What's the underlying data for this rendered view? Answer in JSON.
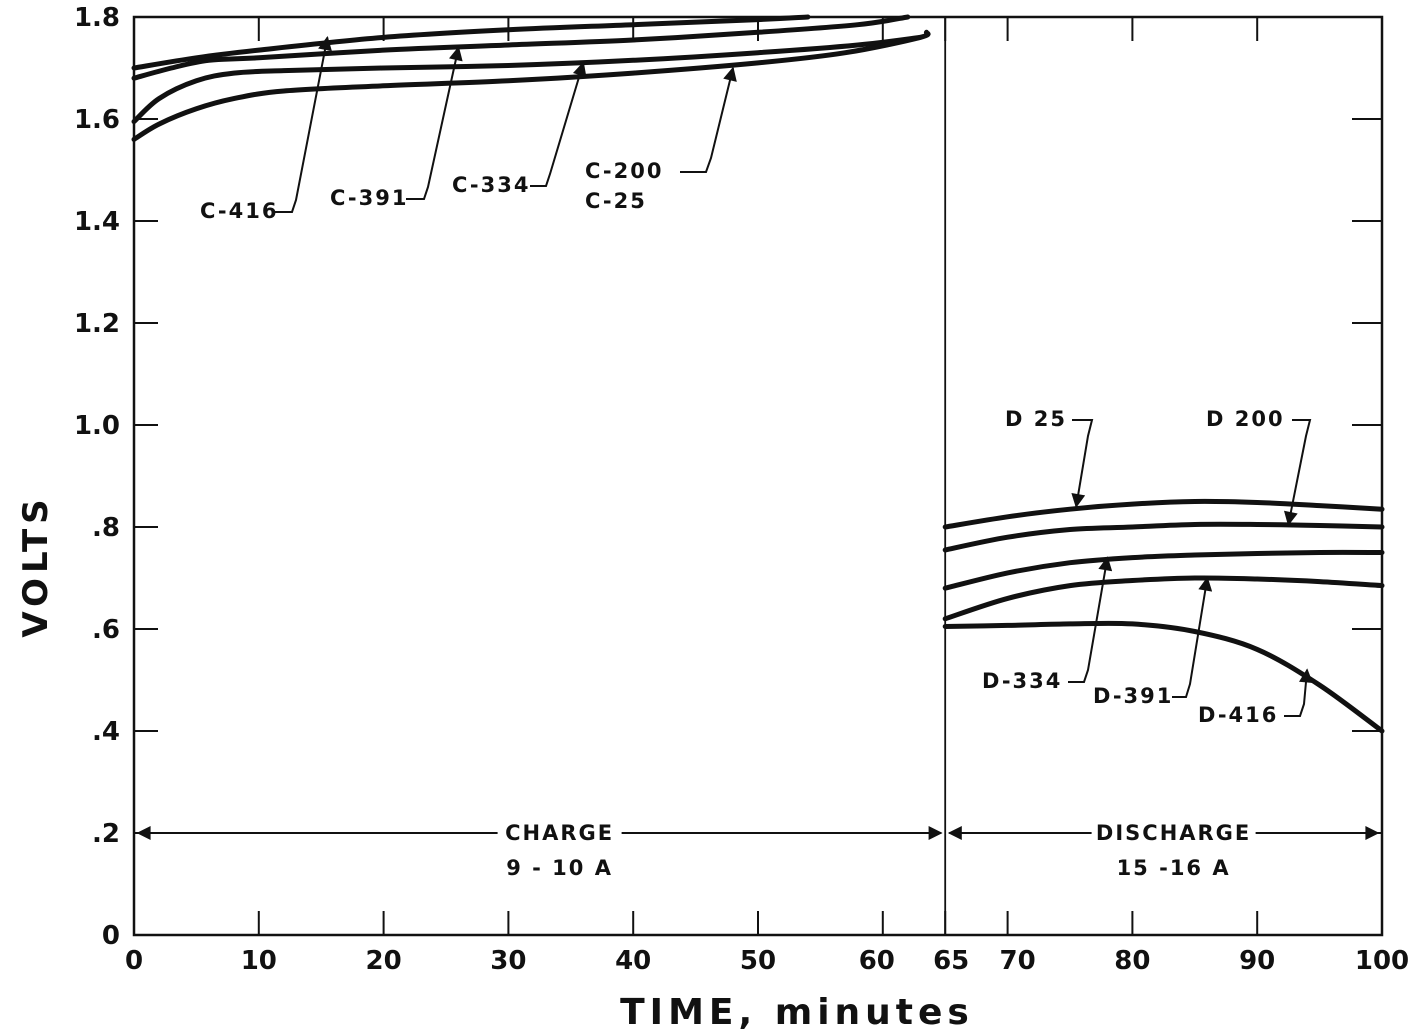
{
  "chart_data": {
    "type": "line",
    "title": "",
    "xlabel": "TIME, minutes",
    "ylabel": "VOLTS",
    "xlim": [
      0,
      100
    ],
    "ylim": [
      0,
      1.8
    ],
    "grid": false,
    "x_ticks": [
      {
        "value": 0,
        "label": "0"
      },
      {
        "value": 10,
        "label": "10"
      },
      {
        "value": 20,
        "label": "20"
      },
      {
        "value": 30,
        "label": "30"
      },
      {
        "value": 40,
        "label": "40"
      },
      {
        "value": 50,
        "label": "50"
      },
      {
        "value": 60,
        "label": "60"
      },
      {
        "value": 65,
        "label": "65"
      },
      {
        "value": 70,
        "label": "70"
      },
      {
        "value": 80,
        "label": "80"
      },
      {
        "value": 90,
        "label": "90"
      },
      {
        "value": 100,
        "label": "100"
      }
    ],
    "y_ticks": [
      {
        "value": 0,
        "label": "0"
      },
      {
        "value": 0.2,
        "label": ".2"
      },
      {
        "value": 0.4,
        "label": ".4"
      },
      {
        "value": 0.6,
        "label": ".6"
      },
      {
        "value": 0.8,
        "label": ".8"
      },
      {
        "value": 1.0,
        "label": "1.0"
      },
      {
        "value": 1.2,
        "label": "1.2"
      },
      {
        "value": 1.4,
        "label": "1.4"
      },
      {
        "value": 1.6,
        "label": "1.6"
      },
      {
        "value": 1.8,
        "label": "1.8"
      }
    ],
    "phase_divider_x": 65,
    "phases": [
      {
        "line1": "CHARGE",
        "line2": "9 - 10 A",
        "x_start": 0,
        "x_end": 65,
        "y": 0.2
      },
      {
        "line1": "DISCHARGE",
        "line2": "15 -16 A",
        "x_start": 65,
        "x_end": 100,
        "y": 0.2
      }
    ],
    "series": [
      {
        "id": "c416",
        "name": "C-416",
        "points": [
          [
            0,
            1.7
          ],
          [
            5,
            1.72
          ],
          [
            10,
            1.735
          ],
          [
            20,
            1.76
          ],
          [
            30,
            1.775
          ],
          [
            40,
            1.785
          ],
          [
            50,
            1.795
          ],
          [
            54,
            1.8
          ]
        ]
      },
      {
        "id": "c391",
        "name": "C-391",
        "points": [
          [
            0,
            1.68
          ],
          [
            3,
            1.7
          ],
          [
            6,
            1.715
          ],
          [
            10,
            1.72
          ],
          [
            20,
            1.735
          ],
          [
            30,
            1.745
          ],
          [
            40,
            1.755
          ],
          [
            50,
            1.77
          ],
          [
            58,
            1.785
          ],
          [
            62,
            1.8
          ]
        ]
      },
      {
        "id": "c334",
        "name": "C-334",
        "points": [
          [
            0,
            1.595
          ],
          [
            2,
            1.64
          ],
          [
            5,
            1.675
          ],
          [
            8,
            1.69
          ],
          [
            12,
            1.695
          ],
          [
            20,
            1.7
          ],
          [
            30,
            1.705
          ],
          [
            40,
            1.715
          ],
          [
            50,
            1.73
          ],
          [
            58,
            1.745
          ],
          [
            63,
            1.76
          ]
        ]
      },
      {
        "id": "c200",
        "name": "C-200 / C-25",
        "points": [
          [
            0,
            1.56
          ],
          [
            2,
            1.59
          ],
          [
            5,
            1.62
          ],
          [
            8,
            1.64
          ],
          [
            12,
            1.655
          ],
          [
            20,
            1.665
          ],
          [
            30,
            1.675
          ],
          [
            40,
            1.69
          ],
          [
            50,
            1.71
          ],
          [
            57,
            1.73
          ],
          [
            63,
            1.76
          ],
          [
            63.5,
            1.77
          ]
        ]
      },
      {
        "id": "d25",
        "name": "D 25",
        "points": [
          [
            65,
            0.8
          ],
          [
            70,
            0.82
          ],
          [
            75,
            0.835
          ],
          [
            80,
            0.845
          ],
          [
            85,
            0.85
          ],
          [
            90,
            0.848
          ],
          [
            95,
            0.842
          ],
          [
            100,
            0.835
          ]
        ]
      },
      {
        "id": "d200",
        "name": "D 200",
        "points": [
          [
            65,
            0.755
          ],
          [
            70,
            0.78
          ],
          [
            75,
            0.795
          ],
          [
            80,
            0.8
          ],
          [
            85,
            0.805
          ],
          [
            90,
            0.805
          ],
          [
            95,
            0.803
          ],
          [
            100,
            0.8
          ]
        ]
      },
      {
        "id": "d334",
        "name": "D-334",
        "points": [
          [
            65,
            0.68
          ],
          [
            70,
            0.71
          ],
          [
            75,
            0.73
          ],
          [
            80,
            0.74
          ],
          [
            85,
            0.745
          ],
          [
            90,
            0.748
          ],
          [
            95,
            0.75
          ],
          [
            100,
            0.75
          ]
        ]
      },
      {
        "id": "d391",
        "name": "D-391",
        "points": [
          [
            65,
            0.62
          ],
          [
            70,
            0.66
          ],
          [
            75,
            0.685
          ],
          [
            80,
            0.695
          ],
          [
            85,
            0.7
          ],
          [
            90,
            0.698
          ],
          [
            95,
            0.693
          ],
          [
            100,
            0.685
          ]
        ]
      },
      {
        "id": "d416",
        "name": "D-416",
        "points": [
          [
            65,
            0.605
          ],
          [
            70,
            0.607
          ],
          [
            75,
            0.61
          ],
          [
            80,
            0.61
          ],
          [
            85,
            0.595
          ],
          [
            90,
            0.56
          ],
          [
            95,
            0.49
          ],
          [
            100,
            0.4
          ]
        ]
      }
    ],
    "annotations": [
      {
        "series": "c416",
        "lines": [
          "C-416"
        ],
        "arrow_to": [
          15.5,
          1.76
        ]
      },
      {
        "series": "c391",
        "lines": [
          "C-391"
        ],
        "arrow_to": [
          26,
          1.74
        ]
      },
      {
        "series": "c334",
        "lines": [
          "C-334"
        ],
        "arrow_to": [
          36,
          1.71
        ]
      },
      {
        "series": "c200",
        "lines": [
          "C-200",
          "C-25"
        ],
        "arrow_to": [
          48,
          1.7
        ]
      },
      {
        "series": "d25",
        "lines": [
          "D 25"
        ],
        "arrow_to": [
          75.5,
          0.84
        ]
      },
      {
        "series": "d200",
        "lines": [
          "D 200"
        ],
        "arrow_to": [
          92.5,
          0.805
        ]
      },
      {
        "series": "d334",
        "lines": [
          "D-334"
        ],
        "arrow_to": [
          78,
          0.74
        ]
      },
      {
        "series": "d391",
        "lines": [
          "D-391"
        ],
        "arrow_to": [
          86,
          0.7
        ]
      },
      {
        "series": "d416",
        "lines": [
          "D-416"
        ],
        "arrow_to": [
          94,
          0.52
        ]
      }
    ]
  }
}
